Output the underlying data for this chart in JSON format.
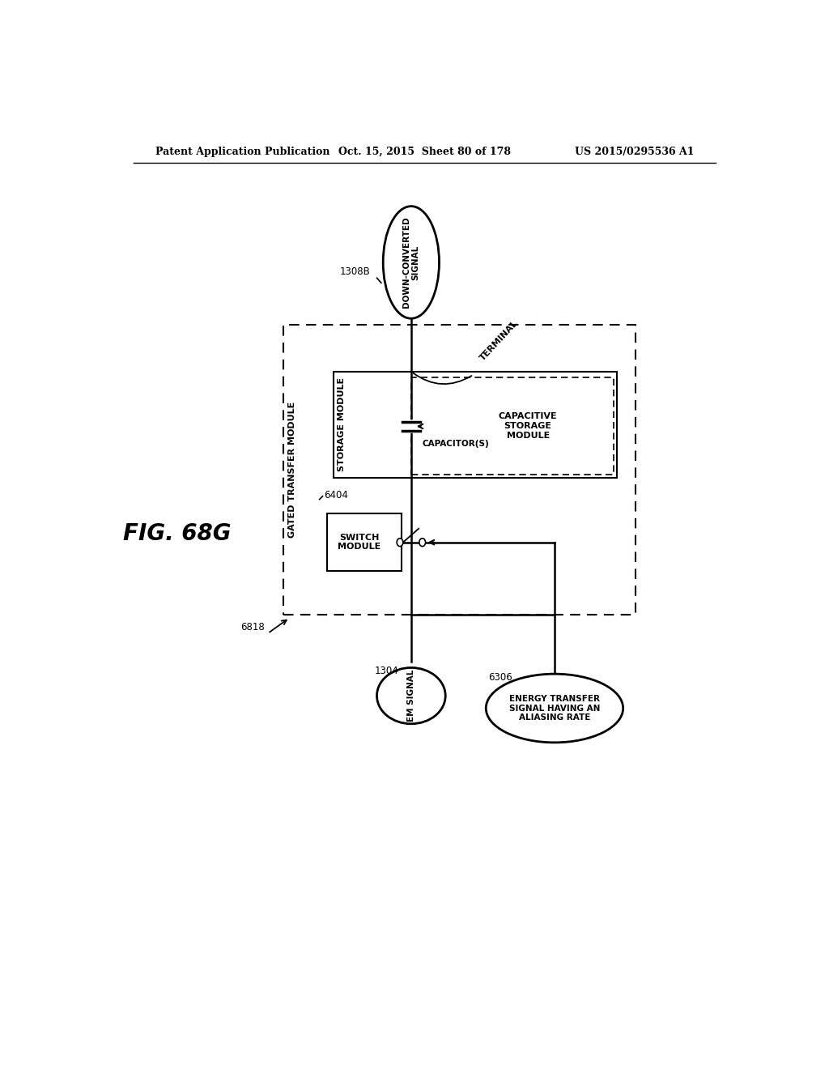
{
  "header_left": "Patent Application Publication",
  "header_mid": "Oct. 15, 2015  Sheet 80 of 178",
  "header_right": "US 2015/0295536 A1",
  "fig_label": "FIG. 68G",
  "background": "#ffffff",
  "line_color": "#000000",
  "label_1308B": "1308B",
  "label_1304": "1304",
  "label_6306": "6306",
  "label_6404": "6404",
  "label_6818": "6818",
  "label_TERMINAL": "TERMINAL",
  "label_STORAGE_MODULE": "STORAGE MODULE",
  "label_CAPACITIVE_STORAGE_MODULE": "CAPACITIVE\nSTORAGE\nMODULE",
  "label_SWITCH_MODULE": "SWITCH\nMODULE",
  "label_GATED_TRANSFER_MODULE": "GATED TRANSFER MODULE",
  "label_CAPACITORS": "CAPACITOR(S)"
}
